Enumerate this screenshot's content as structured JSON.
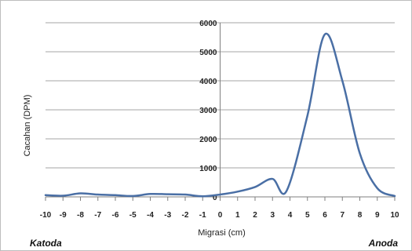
{
  "chart_data": {
    "type": "line",
    "title": "",
    "xlabel": "Migrasi (cm)",
    "ylabel": "Cacahan (DPM)",
    "xlim": [
      -10,
      10
    ],
    "ylim": [
      0,
      6000
    ],
    "xticks": [
      -10,
      -9,
      -8,
      -7,
      -6,
      -5,
      -4,
      -3,
      -2,
      -1,
      0,
      1,
      2,
      3,
      4,
      5,
      6,
      7,
      8,
      9,
      10
    ],
    "yticks": [
      0,
      1000,
      2000,
      3000,
      4000,
      5000,
      6000
    ],
    "grid": "horizontal",
    "series_color": "#4a6fa5",
    "series": [
      {
        "x": [
          -10,
          -9,
          -8,
          -7,
          -6,
          -5,
          -4,
          -3,
          -2,
          -1,
          0,
          1,
          2,
          3,
          3.8,
          5,
          6,
          7,
          8,
          9,
          10
        ],
        "y": [
          60,
          40,
          120,
          80,
          60,
          30,
          100,
          90,
          80,
          20,
          80,
          180,
          340,
          620,
          200,
          2800,
          5600,
          4000,
          1500,
          300,
          30
        ]
      }
    ]
  },
  "labels": {
    "left": "Katoda",
    "right": "Anoda"
  }
}
